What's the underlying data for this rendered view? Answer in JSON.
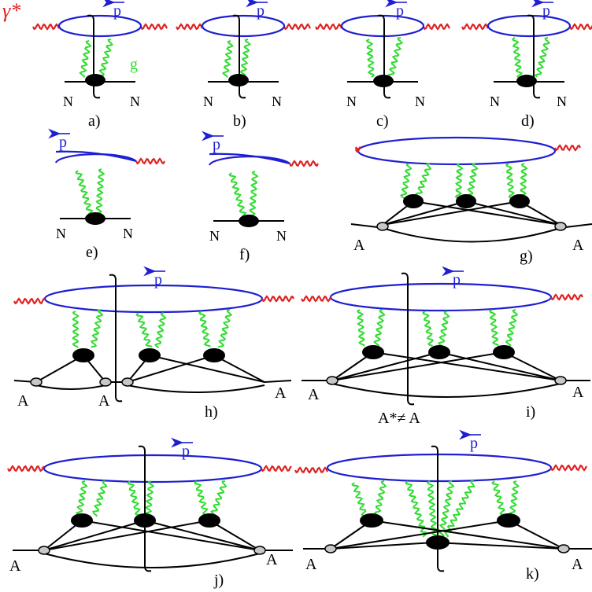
{
  "labels": {
    "gamma": "γ*",
    "gluon": "g",
    "momentum": "p",
    "nucleon": "N",
    "nucleus": "A",
    "excited": "A*≠ A"
  },
  "panels": [
    "a)",
    "b)",
    "c)",
    "d)",
    "e)",
    "f)",
    "g)",
    "h)",
    "i)",
    "j)",
    "k)"
  ],
  "colors": {
    "photon": "#e02020",
    "quark_loop": "#1e1ed2",
    "gluon": "#2ddc2d",
    "lines": "#000000"
  }
}
